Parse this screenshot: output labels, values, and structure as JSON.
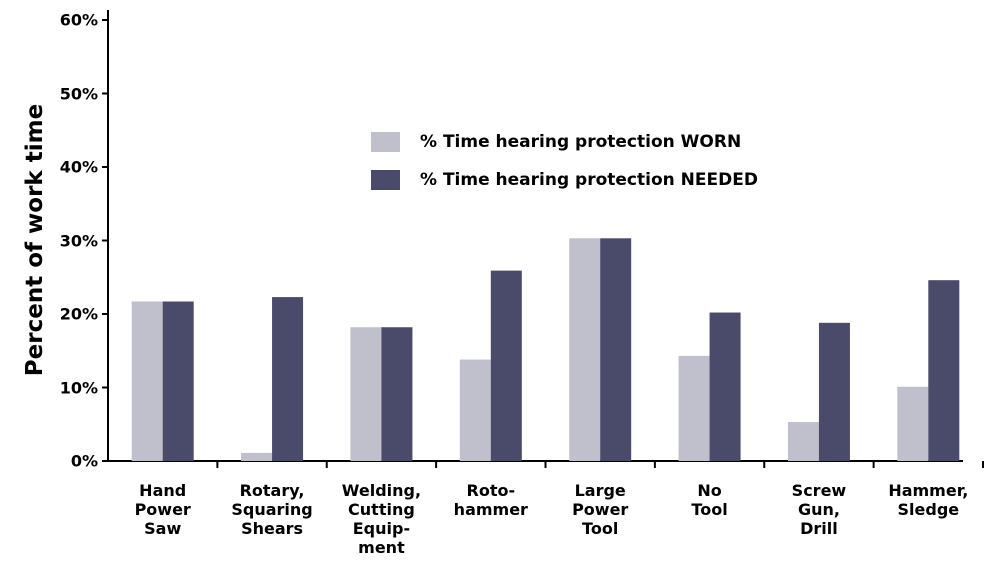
{
  "chart_data": {
    "type": "bar",
    "y_label": "Percent of work time",
    "categories": [
      "Hand\nPower\nSaw",
      "Rotary,\nSquaring\nShears",
      "Welding,\nCutting\nEquip-\nment",
      "Roto-\nhammer",
      "Large\nPower\nTool",
      "No\nTool",
      "Screw\nGun,\nDrill",
      "Hammer,\nSledge"
    ],
    "series": [
      {
        "name": "% Time hearing protection WORN",
        "color": "#c0bfcc",
        "values": [
          21.7,
          1.1,
          18.2,
          13.8,
          30.3,
          14.3,
          5.3,
          10.1
        ]
      },
      {
        "name": "% Time hearing protection NEEDED",
        "color": "#4a4a6a",
        "values": [
          21.7,
          22.3,
          18.2,
          25.9,
          30.3,
          20.2,
          18.8,
          24.6
        ]
      }
    ],
    "ylim": [
      0,
      60
    ],
    "yticks": [
      {
        "value": 0,
        "label": "0%"
      },
      {
        "value": 10,
        "label": "10%"
      },
      {
        "value": 20,
        "label": "20%"
      },
      {
        "value": 30,
        "label": "30%"
      },
      {
        "value": 40,
        "label": "40%"
      },
      {
        "value": 50,
        "label": "50%"
      },
      {
        "value": 60,
        "label": "60%"
      }
    ]
  }
}
